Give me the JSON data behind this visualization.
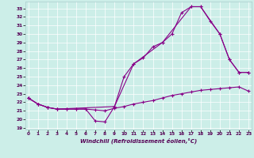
{
  "xlabel": "Windchill (Refroidissement éolien,°C)",
  "bg_color": "#cceee8",
  "line_color": "#880088",
  "x_ticks": [
    0,
    1,
    2,
    3,
    4,
    5,
    6,
    7,
    8,
    9,
    10,
    11,
    12,
    13,
    14,
    15,
    16,
    17,
    18,
    19,
    20,
    21,
    22,
    23
  ],
  "y_ticks": [
    19,
    20,
    21,
    22,
    23,
    24,
    25,
    26,
    27,
    28,
    29,
    30,
    31,
    32,
    33
  ],
  "ylim": [
    18.8,
    33.8
  ],
  "xlim": [
    -0.3,
    23.3
  ],
  "line1_x": [
    0,
    1,
    2,
    3,
    4,
    5,
    6,
    7,
    8,
    9,
    10,
    11,
    12,
    13,
    14,
    15,
    16,
    17,
    18,
    19,
    20,
    21,
    22,
    23
  ],
  "line1_y": [
    22.5,
    21.8,
    21.4,
    21.2,
    21.2,
    21.2,
    21.2,
    21.1,
    21.0,
    21.3,
    21.5,
    21.8,
    22.0,
    22.2,
    22.5,
    22.8,
    23.0,
    23.2,
    23.4,
    23.5,
    23.6,
    23.7,
    23.8,
    23.3
  ],
  "line2_x": [
    0,
    1,
    2,
    3,
    4,
    5,
    6,
    7,
    8,
    9,
    10,
    11,
    12,
    13,
    14,
    15,
    16,
    17,
    18,
    19,
    20,
    21,
    22,
    23
  ],
  "line2_y": [
    22.5,
    21.8,
    21.4,
    21.2,
    21.2,
    21.2,
    21.2,
    19.8,
    19.7,
    21.5,
    25.0,
    26.5,
    27.2,
    28.5,
    29.0,
    30.0,
    32.5,
    33.2,
    33.2,
    31.5,
    30.0,
    27.0,
    25.5,
    25.5
  ],
  "line3_x": [
    0,
    1,
    2,
    3,
    9,
    11,
    14,
    17,
    18,
    20,
    21,
    22,
    23
  ],
  "line3_y": [
    22.5,
    21.8,
    21.4,
    21.2,
    21.5,
    26.5,
    29.0,
    33.2,
    33.2,
    30.0,
    27.0,
    25.5,
    25.5
  ]
}
